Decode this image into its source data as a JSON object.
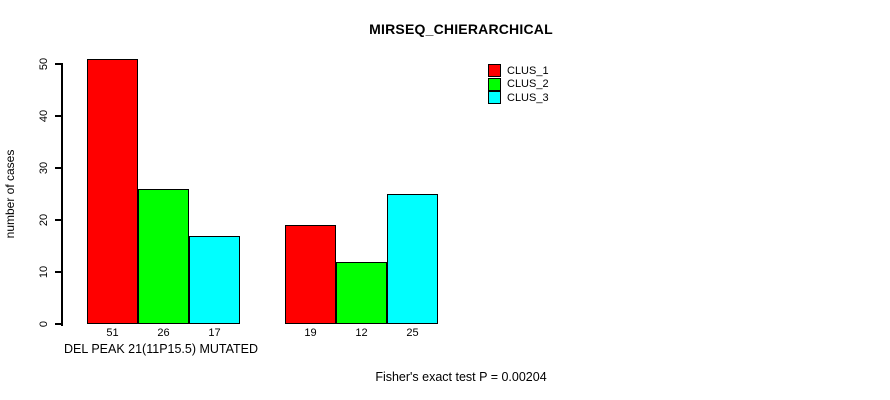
{
  "chart_data": {
    "type": "bar",
    "title": "MIRSEQ_CHIERARCHICAL",
    "ylabel": "number of cases",
    "xlabel": "",
    "ylim": [
      0,
      50
    ],
    "yticks": [
      0,
      10,
      20,
      30,
      40,
      50
    ],
    "grid": false,
    "categories": [
      "DEL PEAK 21(11P15.5) MUTATED",
      ""
    ],
    "series": [
      {
        "name": "CLUS_1",
        "color": "#ff0000",
        "values": [
          51,
          19
        ]
      },
      {
        "name": "CLUS_2",
        "color": "#00ff00",
        "values": [
          26,
          12
        ]
      },
      {
        "name": "CLUS_3",
        "color": "#00ffff",
        "values": [
          17,
          25
        ]
      }
    ],
    "bar_value_labels": [
      [
        51,
        26,
        17
      ],
      [
        19,
        12,
        25
      ]
    ],
    "legend_position": "top-right",
    "annotation": "Fisher's exact test P = 0.00204"
  }
}
